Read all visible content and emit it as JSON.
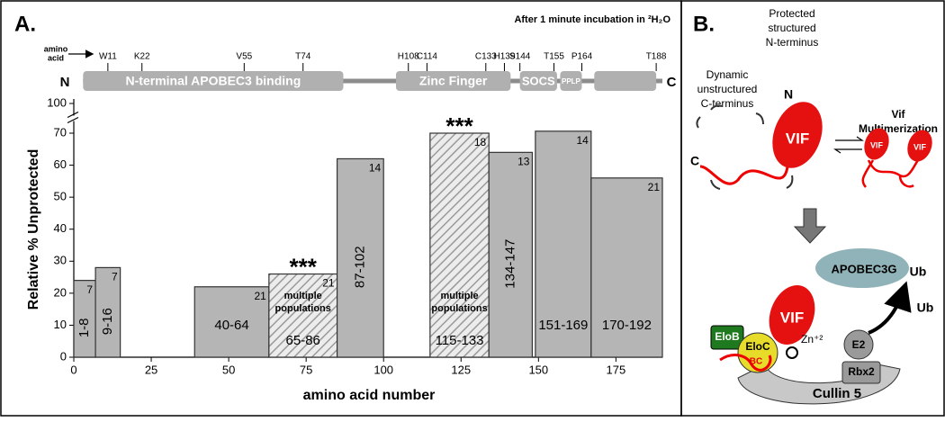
{
  "chart_data": {
    "type": "bar",
    "panel": "A.",
    "title": "After 1 minute incubation in ²H₂O",
    "x_label": "amino acid number",
    "y_label": "Relative % Unprotected",
    "xlim": [
      0,
      190
    ],
    "xticks": [
      0,
      25,
      50,
      75,
      100,
      125,
      150,
      175
    ],
    "ylim": [
      0,
      100
    ],
    "yticks": [
      0,
      10,
      20,
      30,
      40,
      50,
      60,
      70,
      100
    ],
    "axis_break": true,
    "color": "#b5b5b5",
    "hatch_color": "#9a9a9a",
    "bars": [
      {
        "label": "1-8",
        "x": [
          0,
          7
        ],
        "value": 24,
        "count": 7
      },
      {
        "label": "9-16",
        "x": [
          7,
          15
        ],
        "value": 28,
        "count": 7
      },
      {
        "label": "40-64",
        "x": [
          39,
          63
        ],
        "value": 22,
        "count": 21
      },
      {
        "label": "65-86",
        "x": [
          63,
          85
        ],
        "value": 26,
        "count": 21,
        "hatched": true,
        "note": [
          "multiple",
          "populations"
        ],
        "significance": "***"
      },
      {
        "label": "87-102",
        "x": [
          85,
          100
        ],
        "value": 62,
        "count": 14
      },
      {
        "label": "115-133",
        "x": [
          115,
          134
        ],
        "value": 70,
        "count": 18,
        "hatched": true,
        "note": [
          "multiple",
          "populations"
        ],
        "significance": "***"
      },
      {
        "label": "134-147",
        "x": [
          134,
          148
        ],
        "value": 64,
        "count": 13
      },
      {
        "label": "151-169",
        "x": [
          149,
          167
        ],
        "value": 72,
        "count": 14
      },
      {
        "label": "170-192",
        "x": [
          167,
          190
        ],
        "value": 56,
        "count": 21
      }
    ]
  },
  "protein_map": {
    "axis_label": [
      "amino",
      "acid"
    ],
    "n_label": "N",
    "c_label": "C",
    "residues": [
      {
        "label": "W11",
        "position": 11
      },
      {
        "label": "K22",
        "position": 22
      },
      {
        "label": "V55",
        "position": 55
      },
      {
        "label": "T74",
        "position": 74
      },
      {
        "label": "H108",
        "position": 108
      },
      {
        "label": "C114",
        "position": 114
      },
      {
        "label": "C133",
        "position": 133
      },
      {
        "label": "H139",
        "position": 139
      },
      {
        "label": "S144",
        "position": 144
      },
      {
        "label": "T155",
        "position": 155
      },
      {
        "label": "P164",
        "position": 164
      },
      {
        "label": "T188",
        "position": 188
      }
    ],
    "domains": [
      {
        "label": "N-terminal APOBEC3 binding",
        "start": 3,
        "end": 87
      },
      {
        "label": "Zinc Finger",
        "start": 104,
        "end": 141
      },
      {
        "label": "SOCS",
        "start": 144,
        "end": 156
      },
      {
        "label": "PPLP",
        "start": 157,
        "end": 164
      },
      {
        "start": 168,
        "end": 188
      }
    ]
  },
  "diagram": {
    "panel": "B.",
    "protected": [
      "Protected",
      "structured",
      "N-terminus"
    ],
    "dynamic": [
      "Dynamic",
      "unstructured",
      "C-terminus"
    ],
    "n": "N",
    "c": "C",
    "vif": "VIF",
    "multimerization": [
      "Vif",
      "Multimerization"
    ],
    "apobec": "APOBEC3G",
    "ub": "Ub",
    "elob": "EloB",
    "eloc": "EloC",
    "bc": "BC",
    "zn": "Zn⁺²",
    "e2": "E2",
    "rbx2": "Rbx2",
    "cullin": "Cullin 5"
  }
}
